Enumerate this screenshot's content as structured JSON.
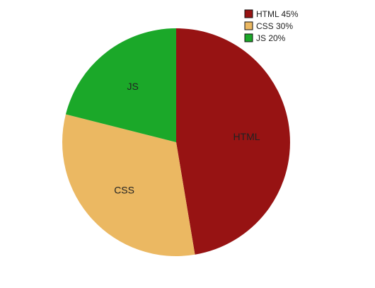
{
  "chart_data": {
    "type": "pie",
    "title": "",
    "slices": [
      {
        "label": "HTML",
        "value": 45,
        "color": "#971313",
        "legend": "HTML 45%"
      },
      {
        "label": "CSS",
        "value": 30,
        "color": "#EBB862",
        "legend": "CSS 30%"
      },
      {
        "label": "JS",
        "value": 20,
        "color": "#1BA829",
        "legend": "JS 20%"
      }
    ],
    "legend_position": "top-right",
    "start_angle": "top (12 o'clock)",
    "direction": "clockwise"
  }
}
